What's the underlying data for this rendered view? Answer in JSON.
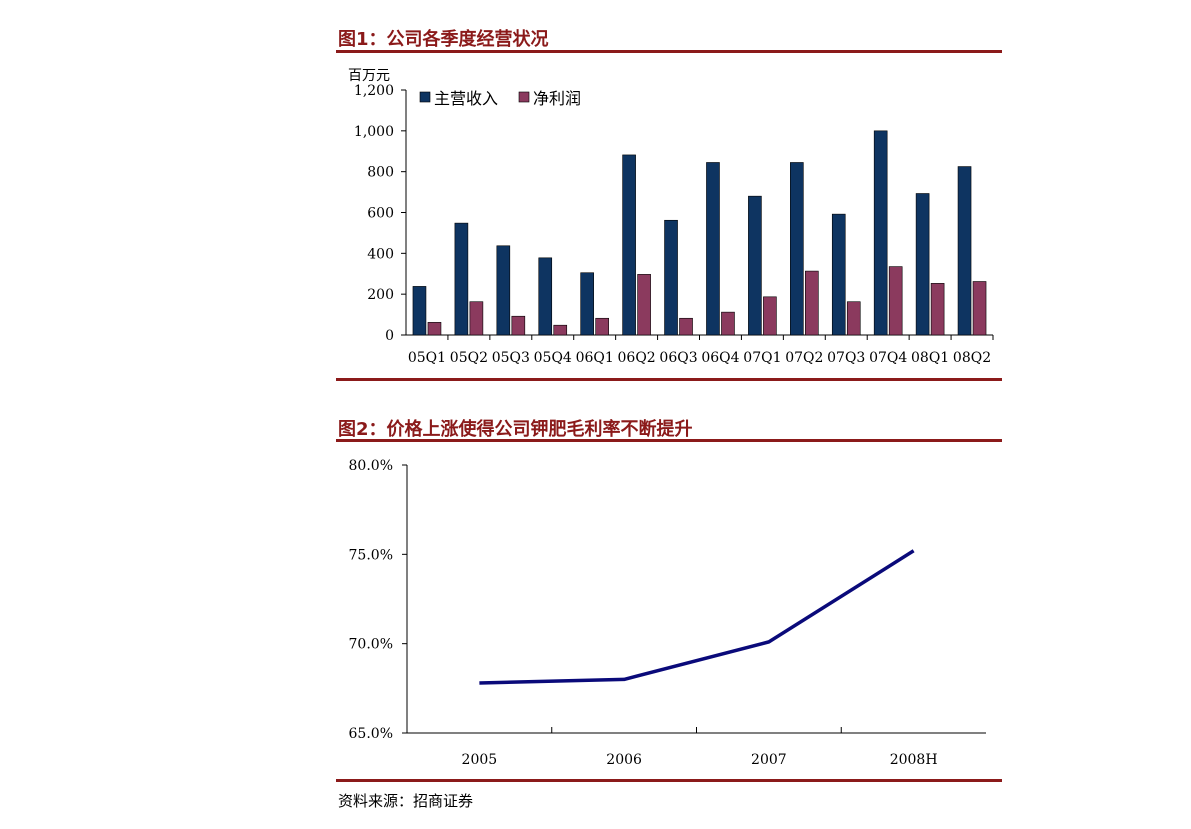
{
  "figure1": {
    "title": "图1：公司各季度经营状况"
  },
  "figure2": {
    "title": "图2：价格上涨使得公司钾肥毛利率不断提升"
  },
  "source": "资料来源：招商证券",
  "colors": {
    "accent": "#8B1A1A",
    "revenue": "#0E3461",
    "profit": "#8B3A5E",
    "line": "#0A0A7A"
  },
  "chart_data": [
    {
      "type": "bar",
      "title": "",
      "ylabel": "百万元",
      "ylim": [
        0,
        1200
      ],
      "yticks": [
        0,
        200,
        400,
        600,
        800,
        1000,
        1200
      ],
      "ytick_labels": [
        "0",
        "200",
        "400",
        "600",
        "800",
        "1,000",
        "1,200"
      ],
      "legend_position": "top-left",
      "categories": [
        "05Q1",
        "05Q2",
        "05Q3",
        "05Q4",
        "06Q1",
        "06Q2",
        "06Q3",
        "06Q4",
        "07Q1",
        "07Q2",
        "07Q3",
        "07Q4",
        "08Q1",
        "08Q2"
      ],
      "series": [
        {
          "name": "主营收入",
          "values": [
            238,
            548,
            437,
            378,
            305,
            882,
            562,
            845,
            680,
            845,
            592,
            1000,
            693,
            825
          ]
        },
        {
          "name": "净利润",
          "values": [
            62,
            163,
            92,
            48,
            82,
            297,
            82,
            112,
            187,
            313,
            163,
            335,
            253,
            262
          ]
        }
      ],
      "grid": false
    },
    {
      "type": "line",
      "title": "",
      "ylim": [
        65.0,
        80.0
      ],
      "yticks": [
        65.0,
        70.0,
        75.0,
        80.0
      ],
      "ytick_labels": [
        "65.0%",
        "70.0%",
        "75.0%",
        "80.0%"
      ],
      "categories": [
        "2005",
        "2006",
        "2007",
        "2008H"
      ],
      "series": [
        {
          "values": [
            67.8,
            68.0,
            70.1,
            75.2
          ]
        }
      ],
      "grid": false
    }
  ]
}
